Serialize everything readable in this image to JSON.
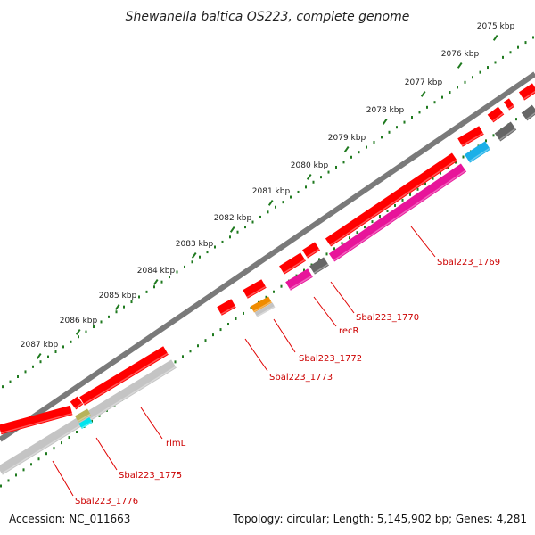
{
  "title": "Shewanella baltica OS223, complete genome",
  "footer": {
    "accession": "Accession: NC_011663",
    "topology": "Topology: circular; Length: 5,145,902 bp; Genes: 4,281"
  },
  "colors": {
    "backbone": "#7a7a7a",
    "ruler_ticks": "#1f7a1f",
    "forward_gene": "#ff0000",
    "label_text": "#cc0000",
    "leader_line": "#e00000",
    "pink_gene": "#e8149a",
    "gray_gene": "#c4c4c4",
    "dark_gray_gene": "#666666",
    "blue_gene": "#1ab0e8",
    "orange_gene": "#f08c00",
    "cyan_gene": "#00e5ee",
    "olive_gene": "#b7b35a"
  },
  "kbp_labels": [
    "2075 kbp",
    "2076 kbp",
    "2077 kbp",
    "2078 kbp",
    "2079 kbp",
    "2080 kbp",
    "2081 kbp",
    "2082 kbp",
    "2083 kbp",
    "2084 kbp",
    "2085 kbp",
    "2086 kbp",
    "2087 kbp"
  ],
  "gene_labels": [
    "Sbal223_1769",
    "Sbal223_1770",
    "recR",
    "Sbal223_1772",
    "Sbal223_1773",
    "rlmL",
    "Sbal223_1775",
    "Sbal223_1776"
  ]
}
